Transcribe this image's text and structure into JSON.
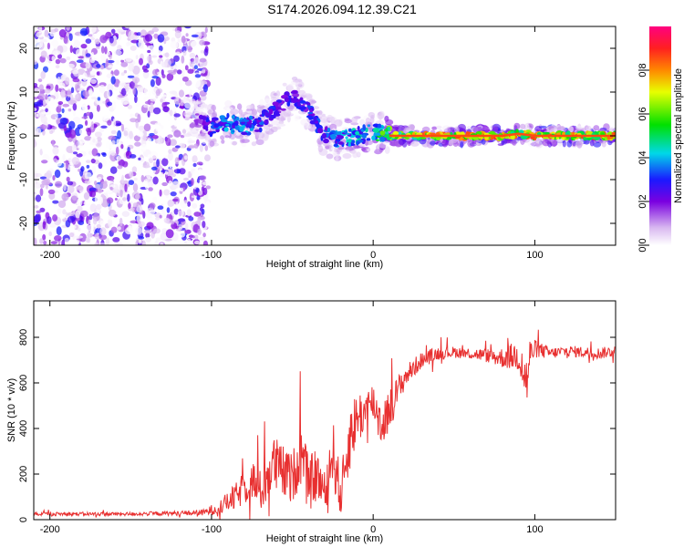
{
  "title": "S174.2026.094.12.39.C21",
  "colors": {
    "snr_line": "#e83030",
    "frame": "#000000",
    "background": "#ffffff"
  },
  "chart_data": [
    {
      "type": "heatmap",
      "xlabel": "Height of straight line (km)",
      "ylabel": "Frequency (Hz)",
      "xlim": [
        -210,
        150
      ],
      "ylim": [
        -25,
        25
      ],
      "x_ticks": [
        -200,
        -100,
        0,
        100
      ],
      "y_ticks": [
        -20,
        -10,
        0,
        10,
        20
      ],
      "colorbar": {
        "label": "Normalized spectral amplitude",
        "range": [
          0,
          1
        ],
        "ticks": [
          "0.0",
          "0.2",
          "0.4",
          "0.6",
          "0.8"
        ],
        "tick_values": [
          0,
          0.2,
          0.4,
          0.6,
          0.8
        ]
      },
      "ridge": {
        "description_points_x": [
          -110,
          -100,
          -90,
          -80,
          -70,
          -60,
          -50,
          -42,
          -35,
          -30,
          -20,
          -10,
          0,
          10,
          20,
          50,
          80,
          90,
          100,
          150
        ],
        "description_points_freq": [
          4,
          2,
          3,
          2,
          3,
          6,
          9,
          7,
          3,
          0,
          -1,
          0,
          1,
          0,
          0,
          0,
          0,
          0.5,
          0,
          0
        ],
        "amplitude": [
          0.15,
          0.35,
          0.4,
          0.4,
          0.35,
          0.3,
          0.3,
          0.3,
          0.35,
          0.35,
          0.4,
          0.45,
          0.5,
          0.7,
          0.8,
          0.85,
          0.85,
          0.8,
          0.85,
          0.85
        ]
      },
      "noise_region_x": [
        -210,
        -110
      ]
    },
    {
      "type": "line",
      "xlabel": "Height of straight line (km)",
      "ylabel": "SNR (10 * v/v)",
      "xlim": [
        -210,
        150
      ],
      "ylim": [
        0,
        960
      ],
      "x_ticks": [
        -200,
        -100,
        0,
        100
      ],
      "y_ticks": [
        0,
        200,
        400,
        600,
        800
      ],
      "series": [
        {
          "name": "SNR",
          "x": [
            -210,
            -180,
            -150,
            -120,
            -105,
            -95,
            -85,
            -75,
            -70,
            -62,
            -55,
            -50,
            -45,
            -40,
            -35,
            -30,
            -25,
            -20,
            -15,
            -10,
            -5,
            0,
            5,
            10,
            15,
            20,
            30,
            40,
            50,
            60,
            70,
            80,
            90,
            95,
            97,
            100,
            110,
            120,
            130,
            140,
            150
          ],
          "values": [
            25,
            25,
            25,
            28,
            30,
            55,
            100,
            180,
            120,
            250,
            200,
            180,
            300,
            150,
            200,
            120,
            300,
            100,
            350,
            450,
            470,
            520,
            420,
            480,
            560,
            630,
            700,
            730,
            735,
            730,
            720,
            710,
            720,
            600,
            720,
            750,
            730,
            740,
            735,
            730,
            740
          ],
          "noise_amp": [
            8,
            8,
            8,
            10,
            15,
            30,
            60,
            90,
            100,
            130,
            120,
            110,
            150,
            120,
            120,
            90,
            150,
            100,
            150,
            120,
            100,
            90,
            110,
            90,
            70,
            50,
            35,
            30,
            25,
            25,
            30,
            45,
            70,
            130,
            80,
            40,
            25,
            25,
            25,
            25,
            25
          ]
        }
      ]
    }
  ]
}
